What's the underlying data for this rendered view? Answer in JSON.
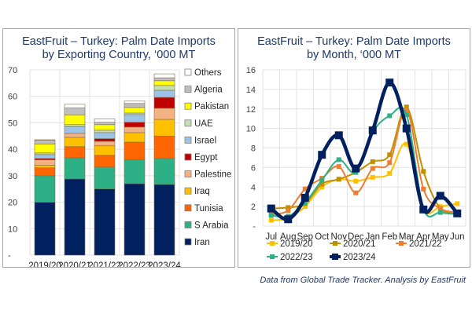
{
  "footer": {
    "source": "Data from Global Trade Tracker. Analysis by EastFruit"
  },
  "chart_data": [
    {
      "type": "bar",
      "stacked": true,
      "title": "EastFruit – Turkey: Palm Date Imports by Exporting Country, ‘000 MT",
      "title_lines": [
        "EastFruit – Turkey: Palm Date Imports",
        "by Exporting Country, ‘000 MT"
      ],
      "xlabel": "",
      "ylabel": "",
      "ylim": [
        0,
        70
      ],
      "yticks": [
        0,
        10,
        20,
        30,
        40,
        50,
        60,
        70
      ],
      "ytick_labels": [
        "-",
        "10",
        "20",
        "30",
        "40",
        "50",
        "60",
        "70"
      ],
      "grid": true,
      "legend_position": "right",
      "categories": [
        "2019/20",
        "2020/21",
        "2021/22",
        "2022/23",
        "2023/24"
      ],
      "series": [
        {
          "name": "Iran",
          "color": "#002060",
          "values": [
            20.0,
            28.8,
            25.0,
            27.0,
            26.7
          ]
        },
        {
          "name": "S Arabia",
          "color": "#2eb086",
          "values": [
            10.0,
            8.0,
            8.3,
            9.0,
            9.8
          ]
        },
        {
          "name": "Tunisia",
          "color": "#ff6600",
          "values": [
            3.0,
            4.2,
            4.4,
            6.7,
            8.5
          ]
        },
        {
          "name": "Iraq",
          "color": "#ffc000",
          "values": [
            1.0,
            3.5,
            3.6,
            3.6,
            6.3
          ]
        },
        {
          "name": "Palestine",
          "color": "#f4b183",
          "values": [
            2.0,
            1.5,
            1.7,
            2.1,
            4.2
          ]
        },
        {
          "name": "Egypt",
          "color": "#c00000",
          "values": [
            0.5,
            0.0,
            1.0,
            1.8,
            4.1
          ]
        },
        {
          "name": "Israel",
          "color": "#9dc3e6",
          "values": [
            1.5,
            2.5,
            2.3,
            2.9,
            2.7
          ]
        },
        {
          "name": "UAE",
          "color": "#c5e0b4",
          "values": [
            0.6,
            0.8,
            0.9,
            0.6,
            1.8
          ]
        },
        {
          "name": "Pakistan",
          "color": "#ffff00",
          "values": [
            3.4,
            3.7,
            2.1,
            2.1,
            1.8
          ]
        },
        {
          "name": "Algeria",
          "color": "#bfbfbf",
          "values": [
            1.4,
            2.6,
            0.9,
            1.5,
            1.1
          ]
        },
        {
          "name": "Others",
          "color": "#ffffff",
          "values": [
            0.2,
            1.4,
            1.3,
            0.9,
            1.5
          ]
        }
      ],
      "legend_order": [
        "Others",
        "Algeria",
        "Pakistan",
        "UAE",
        "Israel",
        "Egypt",
        "Palestine",
        "Iraq",
        "Tunisia",
        "S Arabia",
        "Iran"
      ]
    },
    {
      "type": "line",
      "title": "EastFruit – Turkey: Palm Date Imports by Month, ‘000 MT",
      "title_lines": [
        "EastFruit – Turkey: Palm Date Imports",
        "by Month, ‘000 MT"
      ],
      "xlabel": "",
      "ylabel": "",
      "ylim": [
        0,
        16
      ],
      "yticks": [
        0,
        2,
        4,
        6,
        8,
        10,
        12,
        14,
        16
      ],
      "ytick_labels": [
        "-",
        "2",
        "4",
        "6",
        "8",
        "10",
        "12",
        "14",
        "16"
      ],
      "grid": true,
      "legend_position": "bottom",
      "x": [
        "Jul",
        "Aug",
        "Sep",
        "Oct",
        "Nov",
        "Dec",
        "Jan",
        "Feb",
        "Mar",
        "Apr",
        "May",
        "Jun"
      ],
      "series": [
        {
          "name": "2019/20",
          "color": "#ffc000",
          "values": [
            0.6,
            0.8,
            2.0,
            4.0,
            4.8,
            4.6,
            5.0,
            5.4,
            8.4,
            1.7,
            2.0,
            2.3
          ]
        },
        {
          "name": "2020/21",
          "color": "#bf9000",
          "values": [
            1.8,
            1.9,
            2.3,
            4.3,
            4.8,
            5.5,
            6.6,
            7.3,
            12.2,
            5.6,
            1.8,
            1.4
          ]
        },
        {
          "name": "2021/22",
          "color": "#ed7d31",
          "values": [
            1.2,
            1.6,
            3.8,
            4.9,
            6.1,
            3.4,
            5.9,
            6.5,
            11.9,
            3.8,
            1.8,
            1.4
          ]
        },
        {
          "name": "2022/23",
          "color": "#2eb086",
          "values": [
            1.1,
            1.0,
            2.4,
            4.7,
            6.8,
            5.5,
            9.6,
            11.3,
            11.4,
            1.8,
            1.4,
            1.2
          ]
        },
        {
          "name": "2023/24",
          "color": "#002060",
          "values": [
            1.8,
            0.7,
            2.9,
            7.3,
            9.3,
            5.9,
            9.8,
            14.7,
            10.0,
            1.7,
            3.1,
            1.3
          ]
        }
      ]
    }
  ]
}
